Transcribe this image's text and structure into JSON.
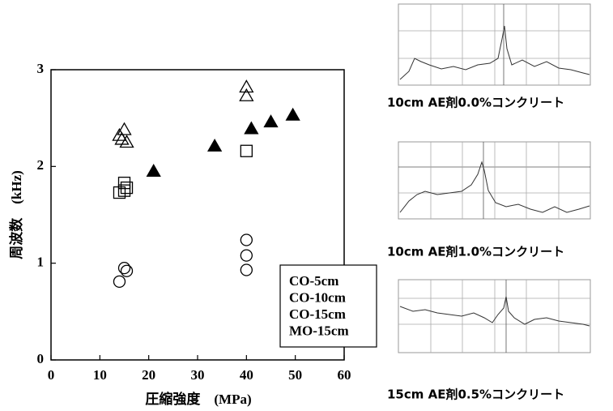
{
  "chart_data": {
    "type": "scatter",
    "xlabel": "圧縮強度　(MPa)",
    "ylabel": "周波数　(kHz)",
    "xlim": [
      0,
      60
    ],
    "xticks": [
      0,
      10,
      20,
      30,
      40,
      50,
      60
    ],
    "ylim": [
      0,
      3
    ],
    "yticks": [
      0,
      1,
      2,
      3
    ],
    "series": [
      {
        "name": "CO-5cm",
        "marker": "triangle",
        "filled": false,
        "color": "#000000",
        "x": [
          14,
          15,
          14.5,
          15.5,
          40,
          40
        ],
        "values": [
          2.32,
          2.38,
          2.28,
          2.25,
          2.82,
          2.73
        ]
      },
      {
        "name": "CO-10cm",
        "marker": "square",
        "filled": false,
        "color": "#000000",
        "x": [
          14,
          15,
          15,
          15.5,
          40
        ],
        "values": [
          1.73,
          1.75,
          1.83,
          1.78,
          2.16
        ]
      },
      {
        "name": "CO-15cm",
        "marker": "circle",
        "filled": false,
        "color": "#000000",
        "x": [
          14,
          15,
          15.5,
          40,
          40,
          40
        ],
        "values": [
          0.81,
          0.95,
          0.92,
          1.24,
          1.08,
          0.93
        ]
      },
      {
        "name": "MO-15cm",
        "marker": "triangle",
        "filled": true,
        "color": "#000000",
        "x": [
          21,
          33.5,
          41,
          45,
          49.5
        ],
        "values": [
          1.95,
          2.21,
          2.39,
          2.46,
          2.53
        ]
      }
    ]
  },
  "panels": [
    {
      "caption": "10cm AE剤0.0%コンクリート"
    },
    {
      "caption": "10cm AE剤1.0%コンクリート"
    },
    {
      "caption": "15cm AE剤0.5%コンクリート"
    }
  ]
}
